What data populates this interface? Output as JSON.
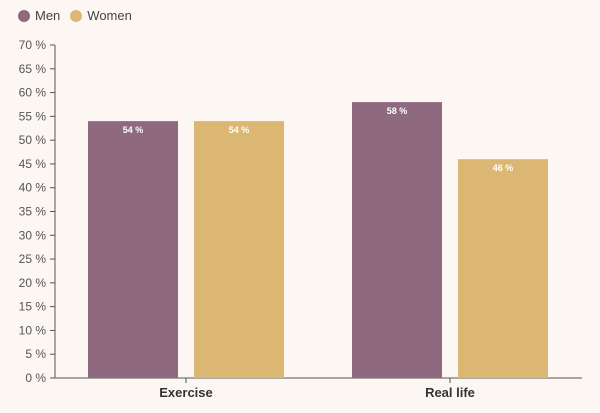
{
  "colors": {
    "men": "#8f6a7f",
    "women": "#dcb774",
    "axis": "#555555",
    "background": "#fdf7f4"
  },
  "legend": [
    {
      "name": "Men",
      "color": "#8f6a7f"
    },
    {
      "name": "Women",
      "color": "#dcb774"
    }
  ],
  "chart_data": {
    "type": "bar",
    "categories": [
      "Exercise",
      "Real life"
    ],
    "series": [
      {
        "name": "Men",
        "values": [
          54,
          58
        ],
        "labels": [
          "54 %",
          "58 %"
        ]
      },
      {
        "name": "Women",
        "values": [
          54,
          46
        ],
        "labels": [
          "54 %",
          "46 %"
        ]
      }
    ],
    "yticks": [
      0,
      5,
      10,
      15,
      20,
      25,
      30,
      35,
      40,
      45,
      50,
      55,
      60,
      65,
      70
    ],
    "ytick_labels": [
      "0 %",
      "5 %",
      "10 %",
      "15 %",
      "20 %",
      "25 %",
      "30 %",
      "35 %",
      "40 %",
      "45 %",
      "50 %",
      "55 %",
      "60 %",
      "65 %",
      "70 %"
    ],
    "ylim": [
      0,
      70
    ],
    "title": "",
    "xlabel": "",
    "ylabel": "",
    "grid": false,
    "legend_position": "top-left"
  }
}
